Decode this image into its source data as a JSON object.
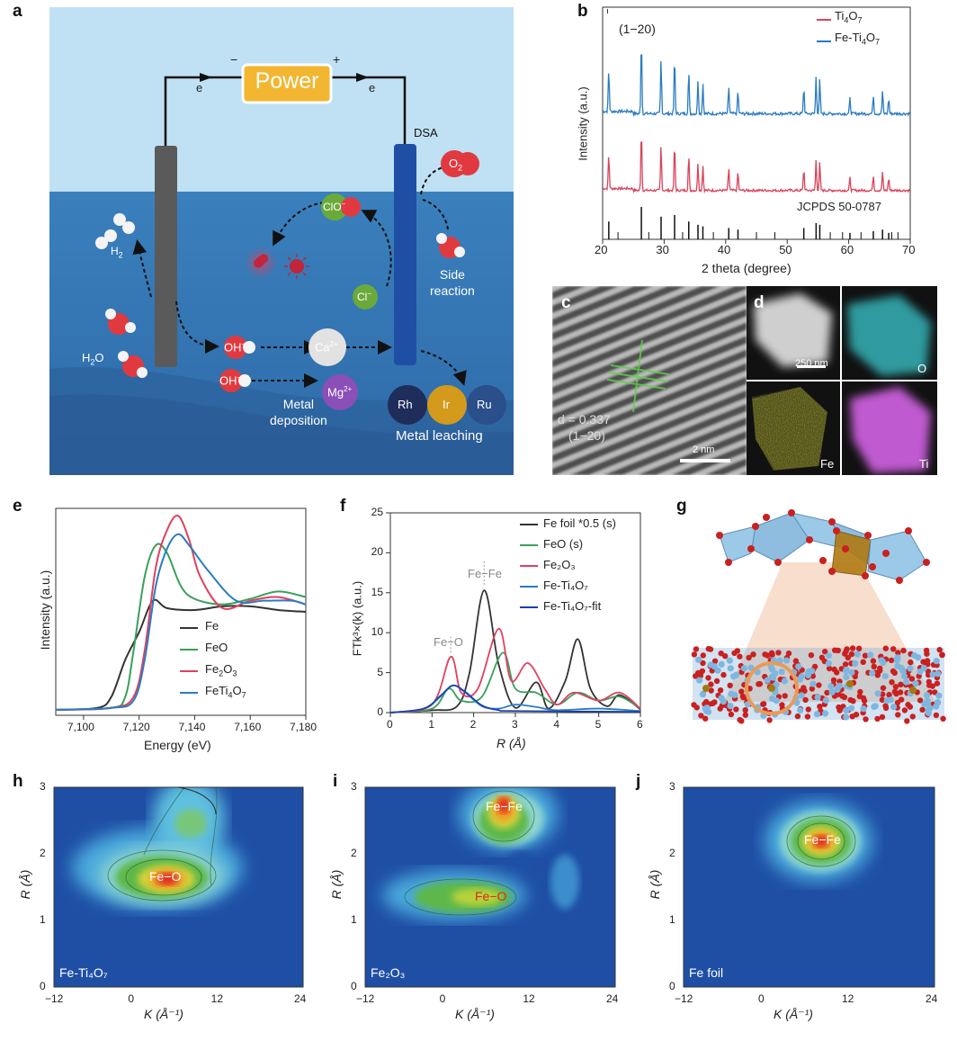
{
  "panel_letters": {
    "a": "a",
    "b": "b",
    "c": "c",
    "d": "d",
    "e": "e",
    "f": "f",
    "g": "g",
    "h": "h",
    "i": "i",
    "j": "j"
  },
  "panel_a": {
    "power_label": "Power",
    "minus": "−",
    "plus": "+",
    "e_left": "e",
    "e_right": "e",
    "dsa_label": "DSA",
    "o2_label": "O",
    "o2_sub": "2",
    "clo_label": "ClO",
    "clo_sup": "−",
    "cl_label": "Cl",
    "cl_sup": "−",
    "h2_label": "H",
    "h2_sub": "2",
    "h2o_label": "H",
    "h2o_sub": "2",
    "h2o_o": "O",
    "side_reaction_1": "Side",
    "side_reaction_2": "reaction",
    "oh_1": "OH",
    "oh_1_sup": "−",
    "oh_2": "OH",
    "oh_2_sup": "−",
    "ca_label": "Ca",
    "ca_sup": "2+",
    "mg_label": "Mg",
    "mg_sup": "2+",
    "metal_deposition_1": "Metal",
    "metal_deposition_2": "deposition",
    "rh_label": "Rh",
    "ir_label": "Ir",
    "ru_label": "Ru",
    "metal_leaching": "Metal leaching",
    "colors": {
      "sky": "#bfe1f3",
      "water": "#3a7dba",
      "power": "#f2b630",
      "cathode": "#5a5a5a",
      "anode": "#1e4fa5",
      "rh": "#1e2d5a",
      "ir": "#d39a1c",
      "ru": "#2a4f8a",
      "mg": "#8b4fb8",
      "cl": "#6aaa3a"
    }
  },
  "panel_b": {
    "xlabel": "2 theta (degree)",
    "ylabel": "Intensity (a.u.)",
    "peak_label": "(1−20)",
    "reference_label": "JCPDS 50-0787",
    "legend": [
      {
        "name": "Ti",
        "sub": "4",
        "name2": "O",
        "sub2": "7",
        "color": "#d9435a"
      },
      {
        "name": "Fe-Ti",
        "sub": "4",
        "name2": "O",
        "sub2": "7",
        "color": "#2a7cc1"
      }
    ],
    "xticks": [
      "20",
      "30",
      "40",
      "50",
      "60",
      "70"
    ]
  },
  "panel_c": {
    "d_label": "d = 0.337",
    "plane_label": "(1−20)",
    "scale_label": "2 nm"
  },
  "panel_d": {
    "scale_label": "250 nm",
    "maps": [
      "O",
      "Fe",
      "Ti"
    ]
  },
  "panel_e": {
    "xlabel": "Energy (eV)",
    "ylabel": "Intensity (a.u.)",
    "xticks": [
      "7,100",
      "7,120",
      "7,140",
      "7,160",
      "7,180"
    ],
    "legend": [
      {
        "name": "Fe",
        "color": "#333333"
      },
      {
        "name": "FeO",
        "color": "#3aa05a"
      },
      {
        "name": "Fe",
        "sub": "2",
        "name2": "O",
        "sub2": "3",
        "color": "#e0405e"
      },
      {
        "name": "FeTi",
        "sub": "4",
        "name2": "O",
        "sub2": "7",
        "color": "#2a7cc1"
      }
    ]
  },
  "panel_f": {
    "xlabel": "R (Å)",
    "ylabel": "FTk³×(k) (a.u.)",
    "yticks": [
      "0",
      "5",
      "10",
      "15",
      "20",
      "25"
    ],
    "xticks": [
      "0",
      "1",
      "2",
      "3",
      "4",
      "5",
      "6"
    ],
    "annot_fefe": "Fe−Fe",
    "annot_feo": "Fe−O",
    "legend": [
      {
        "label": "Fe foil *0.5 (s)",
        "color": "#333333"
      },
      {
        "label": "FeO (s)",
        "color": "#3aa05a"
      },
      {
        "label": "Fe₂O₃",
        "color": "#e0405e"
      },
      {
        "label": "Fe-Ti₄O₇",
        "color": "#2a7cc1"
      },
      {
        "label": "Fe-Ti₄O₇-fit",
        "color": "#1a3fb0"
      }
    ]
  },
  "panel_hij": {
    "ylabel": "R (Å)",
    "xlabel": "K (Å⁻¹)",
    "xticks": [
      "−12",
      "0",
      "12",
      "24"
    ],
    "yticks": [
      "0",
      "1",
      "2",
      "3"
    ],
    "h": {
      "sample": "Fe-Ti₄O₇",
      "feature": "Fe−O"
    },
    "i": {
      "sample": "Fe₂O₃",
      "feature_top": "Fe−Fe",
      "feature_bottom": "Fe−O"
    },
    "j": {
      "sample": "Fe foil",
      "feature": "Fe−Fe"
    }
  },
  "chart_data": [
    {
      "type": "line",
      "id": "b",
      "xlabel": "2 theta (degree)",
      "ylabel": "Intensity (a.u.)",
      "xlim": [
        20,
        70
      ],
      "series": [
        {
          "name": "Ti4O7"
        },
        {
          "name": "Fe-Ti4O7"
        }
      ],
      "peaks_2theta": [
        21,
        26.3,
        29.5,
        31.7,
        34,
        35.5,
        36.3,
        40.5,
        42,
        52.7,
        54.7,
        55.3,
        60.2,
        64,
        65.5,
        66.5
      ]
    },
    {
      "type": "line",
      "id": "e",
      "xlabel": "Energy (eV)",
      "ylabel": "Intensity (a.u.)",
      "xlim": [
        7090,
        7180
      ],
      "series": [
        {
          "name": "Fe",
          "x": [
            7090,
            7105,
            7110,
            7115,
            7120,
            7125,
            7130,
            7140,
            7150,
            7160,
            7170,
            7180
          ],
          "y": [
            0.03,
            0.04,
            0.1,
            0.3,
            0.45,
            0.62,
            0.58,
            0.57,
            0.59,
            0.59,
            0.57,
            0.56
          ]
        },
        {
          "name": "FeO",
          "x": [
            7090,
            7110,
            7115,
            7118,
            7122,
            7126,
            7130,
            7135,
            7140,
            7150,
            7160,
            7170,
            7180
          ],
          "y": [
            0.03,
            0.04,
            0.1,
            0.35,
            0.75,
            0.92,
            0.88,
            0.7,
            0.63,
            0.6,
            0.63,
            0.67,
            0.64
          ]
        },
        {
          "name": "Fe2O3",
          "x": [
            7090,
            7110,
            7118,
            7122,
            7126,
            7130,
            7134,
            7138,
            7142,
            7150,
            7160,
            7170,
            7180
          ],
          "y": [
            0.03,
            0.04,
            0.1,
            0.35,
            0.8,
            1.0,
            1.08,
            0.95,
            0.75,
            0.58,
            0.62,
            0.64,
            0.6
          ]
        },
        {
          "name": "FeTi4O7",
          "x": [
            7090,
            7110,
            7118,
            7122,
            7126,
            7130,
            7134,
            7138,
            7145,
            7155,
            7165,
            7175,
            7180
          ],
          "y": [
            0.03,
            0.04,
            0.08,
            0.3,
            0.7,
            0.9,
            0.98,
            0.92,
            0.78,
            0.62,
            0.62,
            0.62,
            0.6
          ]
        }
      ]
    },
    {
      "type": "line",
      "id": "f",
      "xlabel": "R (Å)",
      "ylabel": "FTk3x(k) (a.u.)",
      "xlim": [
        0,
        6
      ],
      "ylim": [
        0,
        25
      ],
      "series": [
        {
          "name": "Fe foil *0.5 (s)",
          "x": [
            0,
            1,
            1.6,
            1.9,
            2.25,
            2.6,
            3,
            3.5,
            3.8,
            4.2,
            4.5,
            4.8,
            5.2,
            5.5,
            6
          ],
          "y": [
            0,
            0.3,
            0.8,
            5,
            15.3,
            6,
            0.6,
            3.8,
            0.5,
            4,
            9.2,
            3,
            0.8,
            2.2,
            0.4
          ]
        },
        {
          "name": "FeO (s)",
          "x": [
            0,
            1,
            1.4,
            1.7,
            2.2,
            2.7,
            3,
            3.5,
            4,
            4.5,
            5,
            5.5,
            6
          ],
          "y": [
            0,
            0.5,
            3,
            1.5,
            2,
            7.5,
            3,
            2.5,
            1,
            2.5,
            1.5,
            2,
            0.5
          ]
        },
        {
          "name": "Fe2O3",
          "x": [
            0,
            1,
            1.45,
            1.7,
            2.1,
            2.6,
            2.9,
            3.3,
            3.7,
            4,
            4.4,
            5,
            5.5,
            6
          ],
          "y": [
            0,
            1,
            7,
            2.5,
            3,
            10.5,
            4,
            6.2,
            3,
            1,
            2.5,
            1.5,
            2.5,
            0.5
          ]
        },
        {
          "name": "Fe-Ti4O7",
          "x": [
            0,
            0.8,
            1.2,
            1.5,
            1.8,
            2.2,
            2.6,
            3,
            3.5,
            4,
            5,
            6
          ],
          "y": [
            0,
            0.5,
            2,
            3.4,
            2.5,
            0.8,
            0.5,
            1,
            0.7,
            0.3,
            0.5,
            0.2
          ]
        },
        {
          "name": "Fe-Ti4O7-fit",
          "x": [
            0,
            0.8,
            1.2,
            1.5,
            1.8,
            2.2,
            2.6,
            3,
            6
          ],
          "y": [
            0,
            0.5,
            2.1,
            3.4,
            2.6,
            0.9,
            0.3,
            0.2,
            0.1
          ]
        }
      ]
    },
    {
      "type": "heatmap",
      "id": "h",
      "xlabel": "K (Å⁻¹)",
      "ylabel": "R (Å)",
      "xlim": [
        -12,
        24
      ],
      "ylim": [
        0,
        3
      ],
      "maxima": [
        {
          "k": 4,
          "r": 1.5,
          "label": "Fe−O"
        }
      ]
    },
    {
      "type": "heatmap",
      "id": "i",
      "xlabel": "K (Å⁻¹)",
      "ylabel": "R (Å)",
      "xlim": [
        -12,
        24
      ],
      "ylim": [
        0,
        3
      ],
      "maxima": [
        {
          "k": 8,
          "r": 2.55,
          "label": "Fe−Fe"
        },
        {
          "k": 4,
          "r": 1.45,
          "label": "Fe−O"
        }
      ]
    },
    {
      "type": "heatmap",
      "id": "j",
      "xlabel": "K (Å⁻¹)",
      "ylabel": "R (Å)",
      "xlim": [
        -12,
        24
      ],
      "ylim": [
        0,
        3
      ],
      "maxima": [
        {
          "k": 8,
          "r": 2.2,
          "label": "Fe−Fe"
        }
      ]
    }
  ]
}
